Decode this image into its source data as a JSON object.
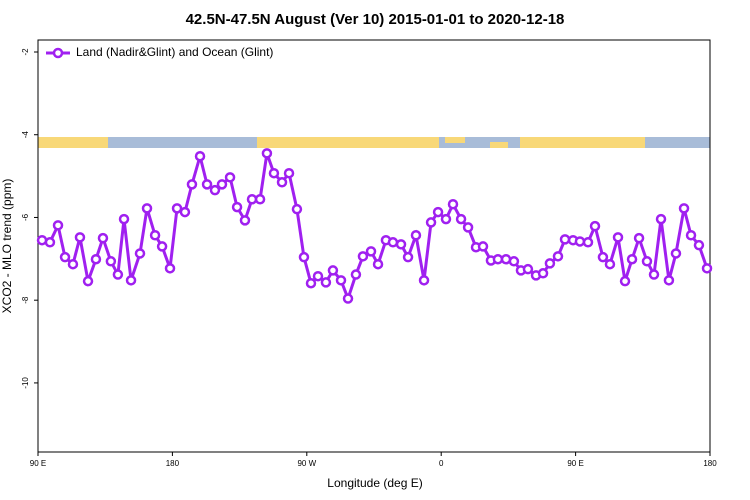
{
  "chart_data": {
    "type": "line",
    "title": "42.5N-47.5N August (Ver 10)   2015-01-01 to 2020-12-18",
    "x_label": "Longitude (deg E)",
    "y_label": "XCO2 - MLO trend (ppm)",
    "xlim": [
      90,
      540
    ],
    "ylim": [
      -11.67,
      -1.71
    ],
    "xticks": [
      {
        "value": 90,
        "label": "90 E"
      },
      180,
      {
        "value": 270,
        "label": "90 W"
      },
      {
        "value": 360,
        "label": "0"
      },
      {
        "value": 450,
        "label": "90 E"
      },
      {
        "value": 540,
        "label": "180"
      }
    ],
    "yticks": [
      -2,
      -4,
      -6,
      -8,
      -10
    ],
    "legend": "top-left",
    "x": [
      92.7,
      98.0,
      103.4,
      108.1,
      113.4,
      118.1,
      123.5,
      128.8,
      133.5,
      138.8,
      143.5,
      147.6,
      152.3,
      158.3,
      163.0,
      168.4,
      173.1,
      178.4,
      183.1,
      188.4,
      193.1,
      198.5,
      203.2,
      208.5,
      213.2,
      218.6,
      223.3,
      228.6,
      233.3,
      238.7,
      243.3,
      248.0,
      253.4,
      258.1,
      263.4,
      268.1,
      272.8,
      277.5,
      282.8,
      287.5,
      292.9,
      297.6,
      302.9,
      307.6,
      313.0,
      317.7,
      323.0,
      327.7,
      333.1,
      337.8,
      343.1,
      348.5,
      353.2,
      357.9,
      363.2,
      367.9,
      373.3,
      378.0,
      383.3,
      388.0,
      393.3,
      398.0,
      403.4,
      408.7,
      413.4,
      418.1,
      423.5,
      428.2,
      432.8,
      438.2,
      442.9,
      448.3,
      452.9,
      458.3,
      463.0,
      468.3,
      473.0,
      478.4,
      483.1,
      487.8,
      492.5,
      497.8,
      502.5,
      507.2,
      512.5,
      517.2,
      522.6,
      527.3,
      532.6,
      538.0
    ],
    "series": [
      {
        "name": "Land (Nadir&Glint) and Ocean (Glint)",
        "color": "#a020f0",
        "values": [
          -6.55,
          -6.6,
          -6.19,
          -6.96,
          -7.13,
          -6.48,
          -7.54,
          -7.01,
          -6.5,
          -7.06,
          -7.38,
          -6.04,
          -7.52,
          -6.87,
          -5.78,
          -6.43,
          -6.7,
          -7.23,
          -5.78,
          -5.87,
          -5.2,
          -4.52,
          -5.2,
          -5.34,
          -5.2,
          -5.03,
          -5.75,
          -6.07,
          -5.56,
          -5.56,
          -4.45,
          -4.93,
          -5.15,
          -4.93,
          -5.8,
          -6.96,
          -7.59,
          -7.42,
          -7.57,
          -7.28,
          -7.52,
          -7.96,
          -7.38,
          -6.94,
          -6.82,
          -7.13,
          -6.55,
          -6.6,
          -6.65,
          -6.96,
          -6.43,
          -7.52,
          -6.12,
          -5.87,
          -6.04,
          -5.68,
          -6.04,
          -6.24,
          -6.72,
          -6.7,
          -7.04,
          -7.01,
          -7.01,
          -7.06,
          -7.28,
          -7.25,
          -7.4,
          -7.35,
          -7.11,
          -6.94,
          -6.53,
          -6.55,
          -6.58,
          -6.6,
          -6.21,
          -6.96,
          -7.13,
          -6.48,
          -7.54,
          -7.01,
          -6.5,
          -7.06,
          -7.38,
          -6.04,
          -7.52,
          -6.87,
          -5.78,
          -6.43,
          -6.67,
          -7.23
        ]
      }
    ]
  }
}
